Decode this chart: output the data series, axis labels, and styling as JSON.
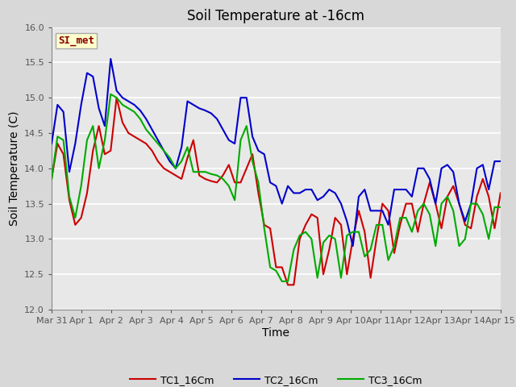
{
  "title": "Soil Temperature at -16cm",
  "xlabel": "Time",
  "ylabel": "Soil Temperature (C)",
  "ylim": [
    12.0,
    16.0
  ],
  "yticks": [
    12.0,
    12.5,
    13.0,
    13.5,
    14.0,
    14.5,
    15.0,
    15.5,
    16.0
  ],
  "xtick_labels": [
    "Mar 31",
    "Apr 1",
    "Apr 2",
    "Apr 3",
    "Apr 4",
    "Apr 5",
    "Apr 6",
    "Apr 7",
    "Apr 8",
    "Apr 9",
    "Apr 10",
    "Apr 11",
    "Apr 12",
    "Apr 13",
    "Apr 14",
    "Apr 15"
  ],
  "colors": {
    "TC1_16Cm": "#cc0000",
    "TC2_16Cm": "#0000cc",
    "TC3_16Cm": "#00aa00"
  },
  "legend_labels": [
    "TC1_16Cm",
    "TC2_16Cm",
    "TC3_16Cm"
  ],
  "watermark_text": "SI_met",
  "watermark_bg": "#ffffcc",
  "watermark_border": "#aaaaaa",
  "watermark_text_color": "#880000",
  "background_color": "#d8d8d8",
  "plot_bg_color": "#e8e8e8",
  "grid_color": "#ffffff",
  "title_fontsize": 12,
  "axis_label_fontsize": 10,
  "tick_fontsize": 8,
  "line_width": 1.5,
  "TC1_16Cm": [
    13.85,
    14.35,
    14.2,
    13.55,
    13.2,
    13.3,
    13.65,
    14.25,
    14.6,
    14.2,
    14.25,
    15.0,
    14.65,
    14.5,
    14.45,
    14.4,
    14.35,
    14.25,
    14.1,
    14.0,
    13.95,
    13.9,
    13.85,
    14.15,
    14.4,
    13.9,
    13.85,
    13.82,
    13.8,
    13.9,
    14.05,
    13.8,
    13.8,
    14.0,
    14.2,
    13.65,
    13.2,
    13.15,
    12.6,
    12.6,
    12.35,
    12.35,
    13.0,
    13.2,
    13.35,
    13.3,
    12.5,
    12.85,
    13.3,
    13.2,
    12.5,
    13.0,
    13.4,
    13.1,
    12.45,
    13.0,
    13.5,
    13.4,
    12.8,
    13.2,
    13.5,
    13.5,
    13.1,
    13.5,
    13.8,
    13.5,
    13.15,
    13.6,
    13.75,
    13.5,
    13.2,
    13.15,
    13.6,
    13.85,
    13.6,
    13.15,
    13.65
  ],
  "TC2_16Cm": [
    14.35,
    14.9,
    14.8,
    13.95,
    14.35,
    14.9,
    15.35,
    15.3,
    14.85,
    14.6,
    15.55,
    15.1,
    15.0,
    14.95,
    14.9,
    14.82,
    14.7,
    14.55,
    14.4,
    14.25,
    14.1,
    14.0,
    14.3,
    14.95,
    14.9,
    14.85,
    14.82,
    14.78,
    14.7,
    14.55,
    14.4,
    14.35,
    15.0,
    15.0,
    14.45,
    14.25,
    14.2,
    13.8,
    13.75,
    13.5,
    13.75,
    13.65,
    13.65,
    13.7,
    13.7,
    13.55,
    13.6,
    13.7,
    13.65,
    13.5,
    13.25,
    12.9,
    13.6,
    13.7,
    13.4,
    13.4,
    13.4,
    13.2,
    13.7,
    13.7,
    13.7,
    13.6,
    14.0,
    14.0,
    13.85,
    13.5,
    14.0,
    14.05,
    13.95,
    13.5,
    13.25,
    13.5,
    14.0,
    14.05,
    13.7,
    14.1,
    14.1
  ],
  "TC3_16Cm": [
    13.85,
    14.45,
    14.4,
    13.6,
    13.3,
    13.75,
    14.4,
    14.6,
    14.0,
    14.4,
    15.05,
    15.0,
    14.9,
    14.85,
    14.8,
    14.7,
    14.55,
    14.45,
    14.35,
    14.25,
    14.15,
    14.0,
    14.1,
    14.3,
    13.95,
    13.95,
    13.95,
    13.92,
    13.9,
    13.85,
    13.75,
    13.55,
    14.4,
    14.6,
    14.1,
    13.8,
    13.15,
    12.6,
    12.55,
    12.4,
    12.4,
    12.85,
    13.05,
    13.1,
    13.0,
    12.45,
    12.95,
    13.05,
    13.0,
    12.45,
    13.05,
    13.1,
    13.1,
    12.75,
    12.85,
    13.2,
    13.2,
    12.7,
    12.9,
    13.3,
    13.3,
    13.1,
    13.4,
    13.5,
    13.35,
    12.9,
    13.5,
    13.6,
    13.4,
    12.9,
    13.0,
    13.5,
    13.5,
    13.35,
    13.0,
    13.45,
    13.45
  ]
}
